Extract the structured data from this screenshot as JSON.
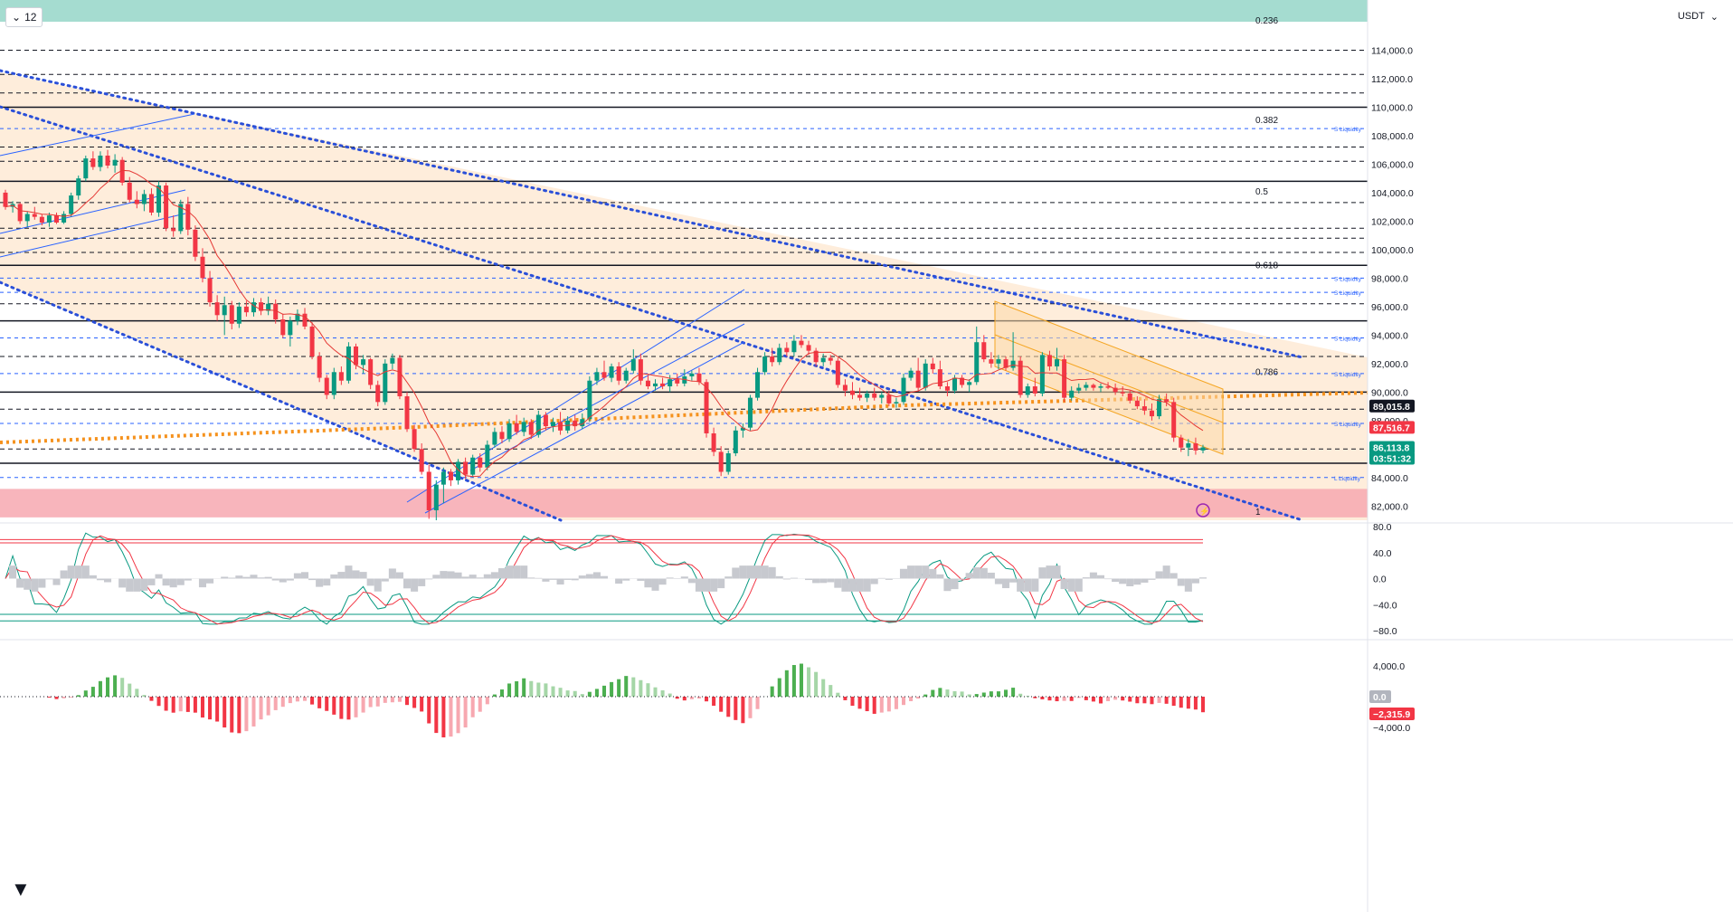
{
  "toolbar": {
    "interval": "12",
    "currency": "USDT"
  },
  "chart_data": {
    "type": "candlestick",
    "instrument_quote": "USDT",
    "price_axis": {
      "ylim": [
        81000,
        116000
      ],
      "ticks": [
        82000,
        84000,
        86000,
        88000,
        90000,
        92000,
        94000,
        96000,
        98000,
        100000,
        102000,
        104000,
        106000,
        108000,
        110000,
        112000,
        114000
      ],
      "tick_labels": [
        "82,000.0",
        "84,000.0",
        "86,000.0",
        "88,000.0",
        "90,000.0",
        "92,000.0",
        "94,000.0",
        "96,000.0",
        "98,000.0",
        "100,000.0",
        "102,000.0",
        "104,000.0",
        "106,000.0",
        "108,000.0",
        "110,000.0",
        "112,000.0",
        "114,000.0"
      ]
    },
    "price_badges": [
      {
        "text": "89,015.8",
        "value": 89015.8,
        "color": "#131722"
      },
      {
        "text": "87,516.7",
        "value": 87516.7,
        "color": "#f23645"
      },
      {
        "text": "86,113.8",
        "value": 86113.8,
        "color": "#089981"
      },
      {
        "text": "03:51:32",
        "value": 86113.8,
        "color": "#089981"
      }
    ],
    "fib_levels": [
      {
        "label": "0.236",
        "price": 115500
      },
      {
        "label": "0.382",
        "price": 108500
      },
      {
        "label": "0.5",
        "price": 103500
      },
      {
        "label": "0.618",
        "price": 98300
      },
      {
        "label": "0.786",
        "price": 90800
      },
      {
        "label": "1",
        "price": 81000
      }
    ],
    "liquidity_labels": [
      {
        "label": "S Liquidity",
        "price": 108500
      },
      {
        "label": "S Liquidity",
        "price": 98000
      },
      {
        "label": "S Liquidity",
        "price": 97000
      },
      {
        "label": "S Liquidity",
        "price": 93800
      },
      {
        "label": "S Liquidity",
        "price": 91300
      },
      {
        "label": "S Liquidity",
        "price": 87800
      },
      {
        "label": "L Liquidity",
        "price": 84000
      }
    ],
    "solid_levels": [
      110000,
      104800,
      98900,
      95000,
      90000,
      85000
    ],
    "dashed_levels": [
      114000,
      112300,
      111000,
      107200,
      106200,
      103300,
      101500,
      100800,
      99800,
      96200,
      92500,
      88800,
      86000
    ],
    "blue_dashed_levels": [
      108500,
      98000,
      97000,
      93800,
      91300,
      87800,
      84000
    ],
    "demand_zone": [
      81200,
      83200
    ],
    "oscillator": {
      "ylim": [
        -80,
        80
      ],
      "ticks": [
        "80.0",
        "40.0",
        "0.0",
        "−40.0",
        "−80.0"
      ],
      "overbought": [
        55,
        60
      ],
      "oversold": [
        -65,
        -55
      ]
    },
    "macd_histogram": {
      "ticks": [
        "4,000.0",
        "0.0",
        "−4,000.0"
      ],
      "zero_badge": "0.0",
      "last_badge": "−2,315.9"
    },
    "candles_ohlc": [
      [
        104000,
        104200,
        102800,
        103000
      ],
      [
        103000,
        103400,
        102600,
        103200
      ],
      [
        103200,
        103300,
        101800,
        102000
      ],
      [
        102000,
        102700,
        101600,
        102500
      ],
      [
        102500,
        103000,
        102100,
        102300
      ],
      [
        102300,
        102500,
        101700,
        101900
      ],
      [
        101900,
        102600,
        101600,
        102400
      ],
      [
        102400,
        102600,
        101800,
        101900
      ],
      [
        101900,
        102700,
        101800,
        102500
      ],
      [
        102500,
        104000,
        102300,
        103800
      ],
      [
        103800,
        105200,
        103500,
        105000
      ],
      [
        105000,
        106600,
        104800,
        106400
      ],
      [
        106400,
        106900,
        105600,
        105800
      ],
      [
        105800,
        106900,
        105500,
        106600
      ],
      [
        106600,
        107000,
        105700,
        105900
      ],
      [
        105900,
        106700,
        105400,
        106300
      ],
      [
        106300,
        106500,
        104500,
        104700
      ],
      [
        104700,
        105100,
        103300,
        103500
      ],
      [
        103500,
        104100,
        102900,
        103200
      ],
      [
        103200,
        104200,
        102700,
        103900
      ],
      [
        103900,
        104300,
        102400,
        102600
      ],
      [
        102600,
        104800,
        102300,
        104500
      ],
      [
        104500,
        104700,
        101300,
        101500
      ],
      [
        101500,
        102400,
        100900,
        101300
      ],
      [
        101300,
        103500,
        101100,
        103200
      ],
      [
        103200,
        103700,
        101000,
        101400
      ],
      [
        101400,
        101700,
        99200,
        99500
      ],
      [
        99500,
        100100,
        97700,
        98000
      ],
      [
        98000,
        98500,
        96000,
        96300
      ],
      [
        96300,
        96800,
        95000,
        95400
      ],
      [
        95400,
        96700,
        94000,
        96100
      ],
      [
        96100,
        96400,
        94400,
        94800
      ],
      [
        94800,
        96300,
        94500,
        96000
      ],
      [
        96000,
        96400,
        95300,
        95600
      ],
      [
        95600,
        96600,
        95300,
        96300
      ],
      [
        96300,
        96600,
        95400,
        95700
      ],
      [
        95700,
        96700,
        95400,
        96200
      ],
      [
        96200,
        96500,
        94800,
        95100
      ],
      [
        95100,
        95500,
        93800,
        94000
      ],
      [
        94000,
        95300,
        93200,
        95000
      ],
      [
        95000,
        95800,
        94700,
        95500
      ],
      [
        95500,
        95900,
        94400,
        94600
      ],
      [
        94600,
        94900,
        92300,
        92500
      ],
      [
        92500,
        92800,
        90700,
        91000
      ],
      [
        91000,
        91200,
        89500,
        89800
      ],
      [
        89800,
        91700,
        89500,
        91400
      ],
      [
        91400,
        91800,
        90500,
        90800
      ],
      [
        90800,
        93500,
        90600,
        93200
      ],
      [
        93200,
        93400,
        91600,
        91900
      ],
      [
        91900,
        92600,
        91300,
        92300
      ],
      [
        92300,
        92400,
        90200,
        90500
      ],
      [
        90500,
        90800,
        89000,
        89300
      ],
      [
        89300,
        92300,
        89100,
        92000
      ],
      [
        92000,
        92700,
        91600,
        92400
      ],
      [
        92400,
        92600,
        89500,
        89700
      ],
      [
        89700,
        90000,
        87200,
        87400
      ],
      [
        87400,
        87700,
        85800,
        86000
      ],
      [
        86000,
        86400,
        84200,
        84400
      ],
      [
        84400,
        84900,
        81100,
        81700
      ],
      [
        81700,
        83800,
        81000,
        83500
      ],
      [
        83500,
        84700,
        82200,
        84400
      ],
      [
        84400,
        84600,
        83400,
        83800
      ],
      [
        83800,
        85300,
        83500,
        85100
      ],
      [
        85100,
        85400,
        83900,
        84200
      ],
      [
        84200,
        85600,
        84000,
        85400
      ],
      [
        85400,
        85700,
        84400,
        84700
      ],
      [
        84700,
        86600,
        84500,
        86300
      ],
      [
        86300,
        87500,
        86100,
        87200
      ],
      [
        87200,
        87600,
        86400,
        86700
      ],
      [
        86700,
        88100,
        86500,
        87800
      ],
      [
        87800,
        88400,
        87000,
        87200
      ],
      [
        87200,
        88200,
        86900,
        87900
      ],
      [
        87900,
        88100,
        86700,
        87000
      ],
      [
        87000,
        88700,
        86800,
        88400
      ],
      [
        88400,
        88600,
        87300,
        87600
      ],
      [
        87600,
        88200,
        87200,
        87900
      ],
      [
        87900,
        88600,
        87000,
        87300
      ],
      [
        87300,
        88300,
        87100,
        88000
      ],
      [
        88000,
        88400,
        87300,
        87600
      ],
      [
        87600,
        88500,
        87400,
        88100
      ],
      [
        88100,
        91100,
        87900,
        90800
      ],
      [
        90800,
        91700,
        90500,
        91400
      ],
      [
        91400,
        92200,
        90800,
        91000
      ],
      [
        91000,
        92000,
        90700,
        91800
      ],
      [
        91800,
        92100,
        90500,
        90800
      ],
      [
        90800,
        91700,
        90600,
        91500
      ],
      [
        91500,
        93000,
        91300,
        92300
      ],
      [
        92300,
        92700,
        90500,
        90800
      ],
      [
        90800,
        91200,
        90200,
        90400
      ],
      [
        90400,
        90900,
        90100,
        90600
      ],
      [
        90600,
        91000,
        90200,
        90400
      ],
      [
        90400,
        91200,
        90000,
        90900
      ],
      [
        90900,
        91300,
        90400,
        90600
      ],
      [
        90600,
        91600,
        90400,
        91100
      ],
      [
        91100,
        91500,
        90800,
        91300
      ],
      [
        91300,
        91700,
        90500,
        90700
      ],
      [
        90700,
        90900,
        86800,
        87100
      ],
      [
        87100,
        87500,
        85500,
        85800
      ],
      [
        85800,
        86200,
        84100,
        84400
      ],
      [
        84400,
        85900,
        84200,
        85700
      ],
      [
        85700,
        87600,
        85500,
        87300
      ],
      [
        87300,
        87800,
        86800,
        87500
      ],
      [
        87500,
        89800,
        87300,
        89600
      ],
      [
        89600,
        91700,
        89400,
        91400
      ],
      [
        91400,
        92800,
        91200,
        92500
      ],
      [
        92500,
        93100,
        91800,
        92100
      ],
      [
        92100,
        93400,
        91900,
        93100
      ],
      [
        93100,
        93500,
        92500,
        92800
      ],
      [
        92800,
        94000,
        92500,
        93600
      ],
      [
        93600,
        94000,
        93100,
        93300
      ],
      [
        93300,
        93600,
        92600,
        92900
      ],
      [
        92900,
        93100,
        91800,
        92100
      ],
      [
        92100,
        92700,
        91800,
        92400
      ],
      [
        92400,
        92600,
        91900,
        92200
      ],
      [
        92200,
        92400,
        90300,
        90500
      ],
      [
        90500,
        90900,
        89700,
        90100
      ],
      [
        90100,
        90700,
        89500,
        89800
      ],
      [
        89800,
        90300,
        89400,
        89600
      ],
      [
        89600,
        90100,
        89300,
        89900
      ],
      [
        89900,
        90300,
        89400,
        89600
      ],
      [
        89600,
        90000,
        89200,
        89800
      ],
      [
        89800,
        90100,
        89000,
        89200
      ],
      [
        89200,
        89600,
        88900,
        89300
      ],
      [
        89300,
        91300,
        89100,
        91000
      ],
      [
        91000,
        91700,
        90800,
        91500
      ],
      [
        91500,
        92400,
        90100,
        90300
      ],
      [
        90300,
        92300,
        90100,
        92000
      ],
      [
        92000,
        92400,
        91300,
        91600
      ],
      [
        91600,
        92200,
        90200,
        90400
      ],
      [
        90400,
        90700,
        89700,
        90100
      ],
      [
        90100,
        91200,
        89900,
        91000
      ],
      [
        91000,
        91200,
        90300,
        90500
      ],
      [
        90500,
        90900,
        90000,
        90700
      ],
      [
        90700,
        94600,
        90500,
        93500
      ],
      [
        93500,
        94000,
        92100,
        92300
      ],
      [
        92300,
        92800,
        91700,
        92000
      ],
      [
        92000,
        92600,
        91600,
        92300
      ],
      [
        92300,
        92500,
        91500,
        91700
      ],
      [
        91700,
        94200,
        91500,
        92200
      ],
      [
        92200,
        92500,
        89600,
        89800
      ],
      [
        89800,
        90600,
        89600,
        90400
      ],
      [
        90400,
        91000,
        89700,
        89900
      ],
      [
        89900,
        92800,
        89700,
        92600
      ],
      [
        92600,
        92900,
        91500,
        91800
      ],
      [
        91800,
        93100,
        91500,
        92300
      ],
      [
        92300,
        92600,
        89300,
        89600
      ],
      [
        89600,
        90400,
        89400,
        90100
      ],
      [
        90100,
        90600,
        89900,
        90300
      ],
      [
        90300,
        90700,
        90100,
        90500
      ],
      [
        90500,
        90600,
        90100,
        90300
      ],
      [
        90300,
        90600,
        90000,
        90400
      ],
      [
        90400,
        90700,
        90200,
        90300
      ],
      [
        90300,
        90600,
        89800,
        90000
      ],
      [
        90000,
        90400,
        89700,
        89900
      ],
      [
        89900,
        90100,
        89200,
        89400
      ],
      [
        89400,
        89700,
        88800,
        89000
      ],
      [
        89000,
        89500,
        88400,
        88700
      ],
      [
        88700,
        89200,
        88000,
        88300
      ],
      [
        88300,
        89800,
        88100,
        89500
      ],
      [
        89500,
        89900,
        89000,
        89300
      ],
      [
        89300,
        89600,
        86500,
        86800
      ],
      [
        86800,
        87000,
        85800,
        86100
      ],
      [
        86100,
        86700,
        85500,
        86400
      ],
      [
        86400,
        86800,
        85600,
        85900
      ],
      [
        85900,
        86300,
        85700,
        86114
      ]
    ]
  }
}
